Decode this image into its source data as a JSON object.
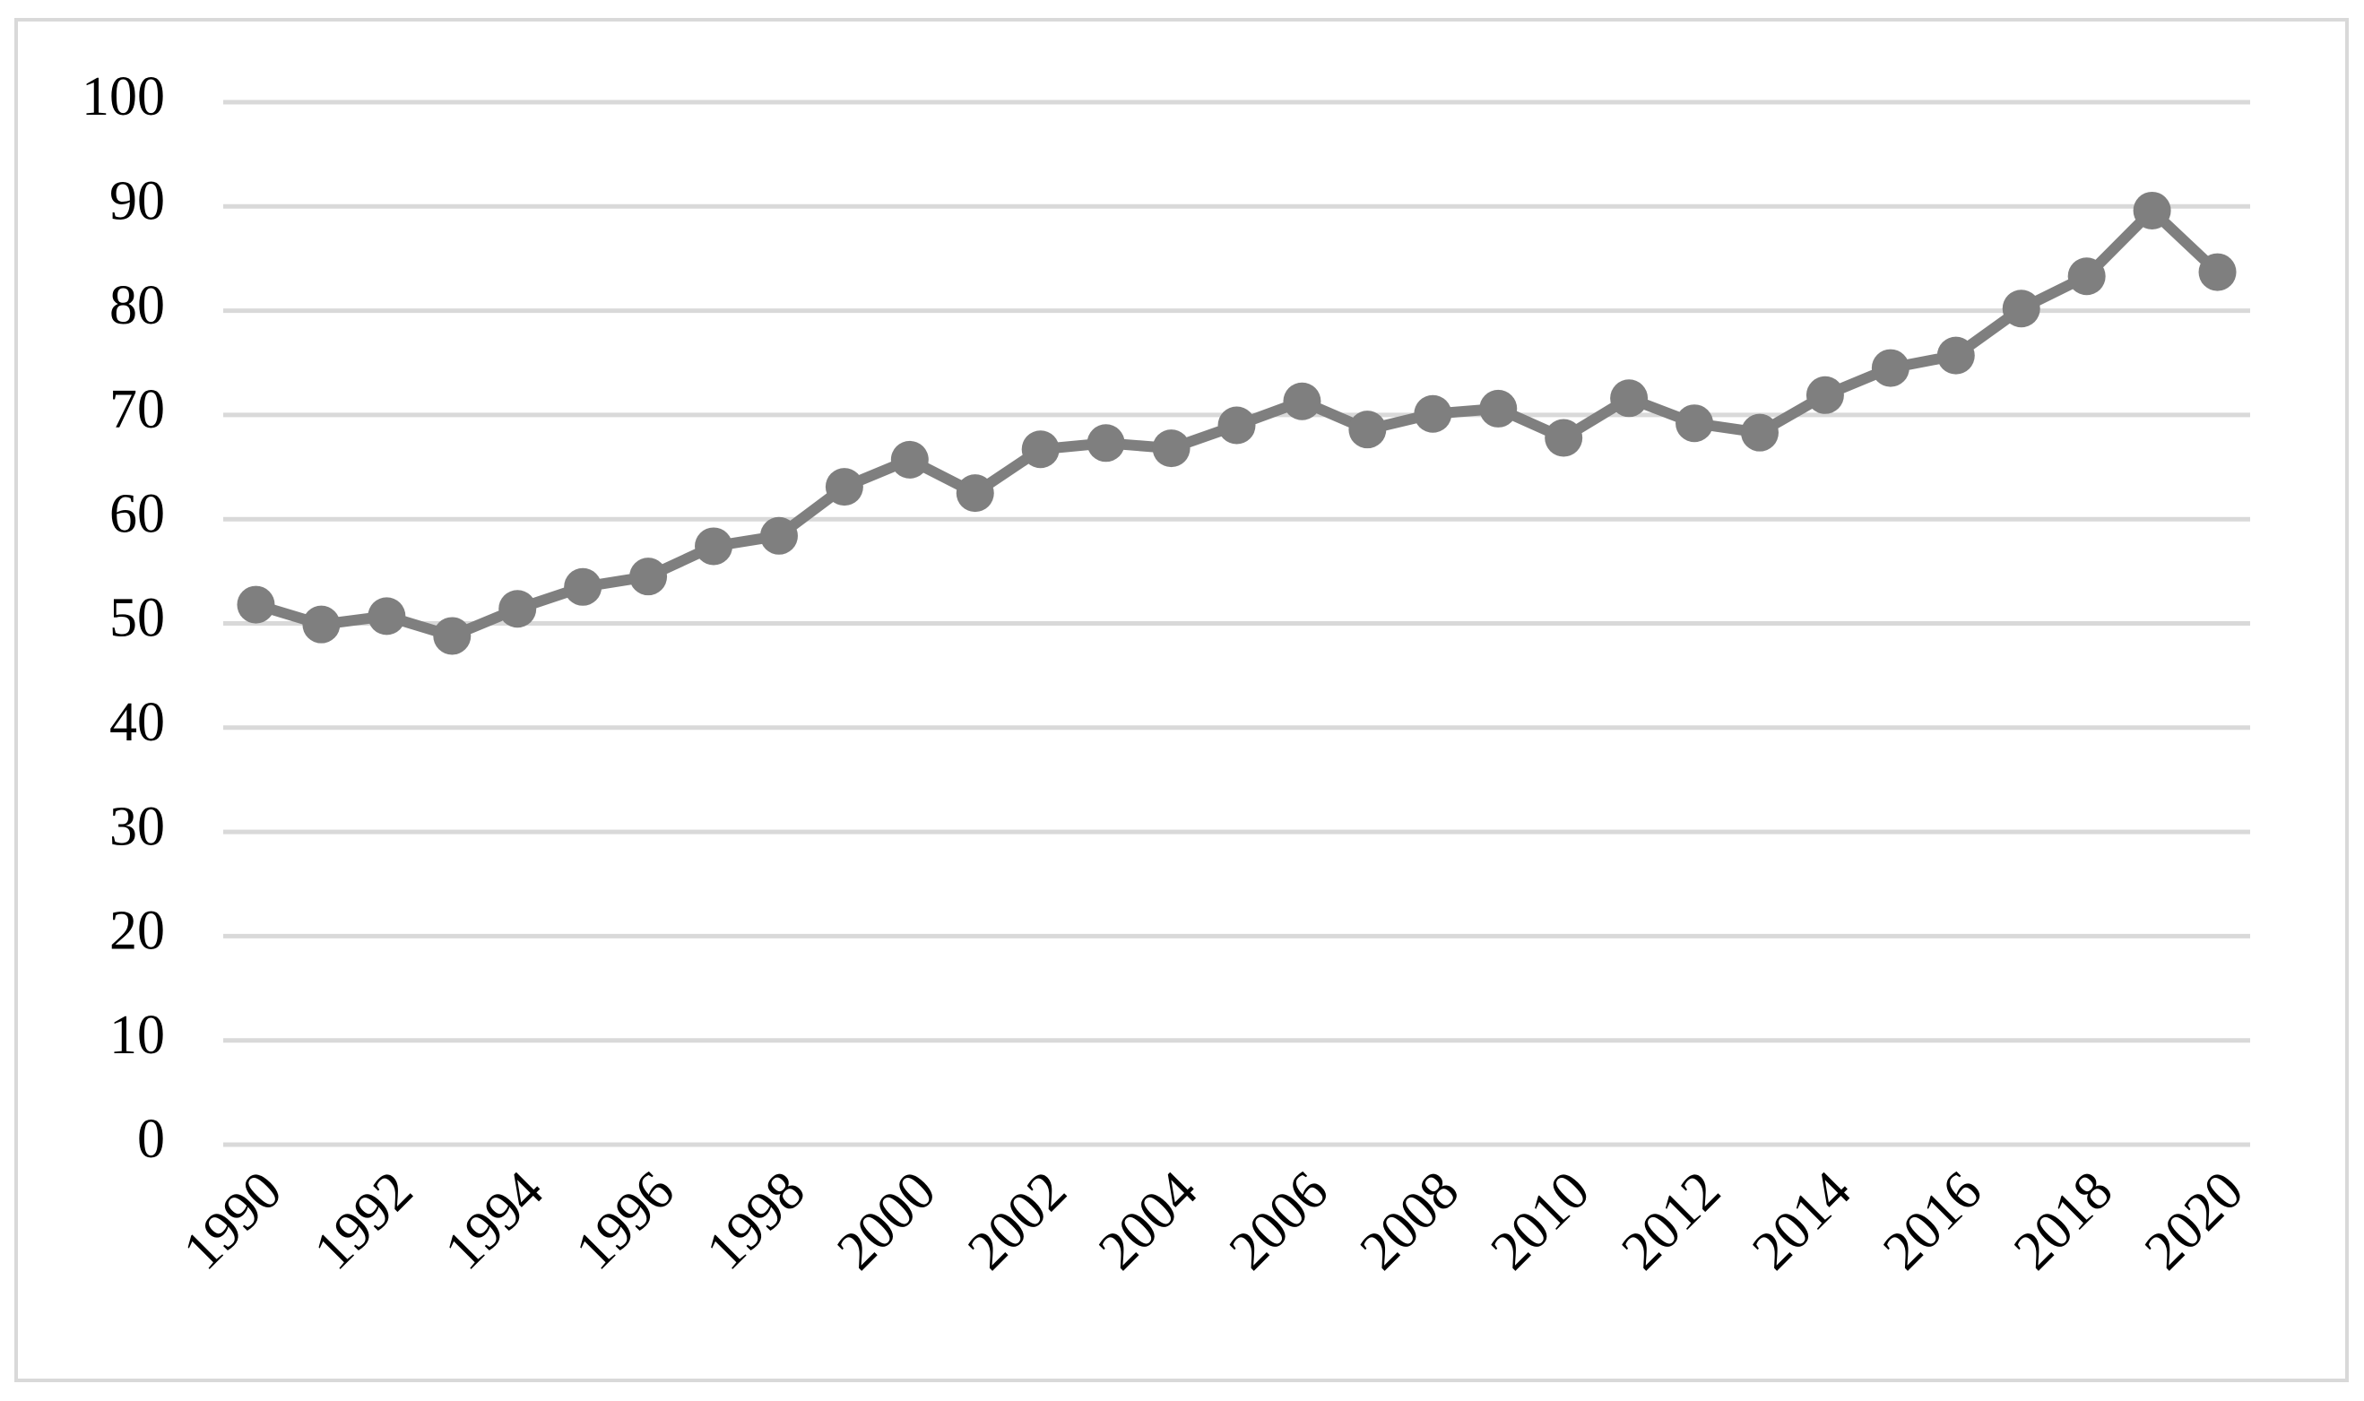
{
  "chart_data": {
    "type": "line",
    "x": [
      1990,
      1991,
      1992,
      1993,
      1994,
      1995,
      1996,
      1997,
      1998,
      1999,
      2000,
      2001,
      2002,
      2003,
      2004,
      2005,
      2006,
      2007,
      2008,
      2009,
      2010,
      2011,
      2012,
      2013,
      2014,
      2015,
      2016,
      2017,
      2018,
      2019,
      2020
    ],
    "series": [
      {
        "color": "#7f7f7f",
        "values": [
          51.8,
          49.9,
          50.7,
          48.8,
          51.4,
          53.5,
          54.5,
          57.4,
          58.4,
          63.1,
          65.7,
          62.5,
          66.7,
          67.3,
          66.8,
          69.0,
          71.3,
          68.6,
          70.1,
          70.6,
          67.8,
          71.6,
          69.2,
          68.3,
          71.9,
          74.5,
          75.7,
          80.2,
          83.3,
          89.6,
          83.7
        ]
      }
    ],
    "xlim": [
      1989.5,
      2020.5
    ],
    "xticks": [
      1990,
      1992,
      1994,
      1996,
      1998,
      2000,
      2002,
      2004,
      2006,
      2008,
      2010,
      2012,
      2014,
      2016,
      2018,
      2020
    ],
    "ylim": [
      0,
      100
    ],
    "yticks": [
      0,
      10,
      20,
      30,
      40,
      50,
      60,
      70,
      80,
      90,
      100
    ],
    "grid": true
  }
}
